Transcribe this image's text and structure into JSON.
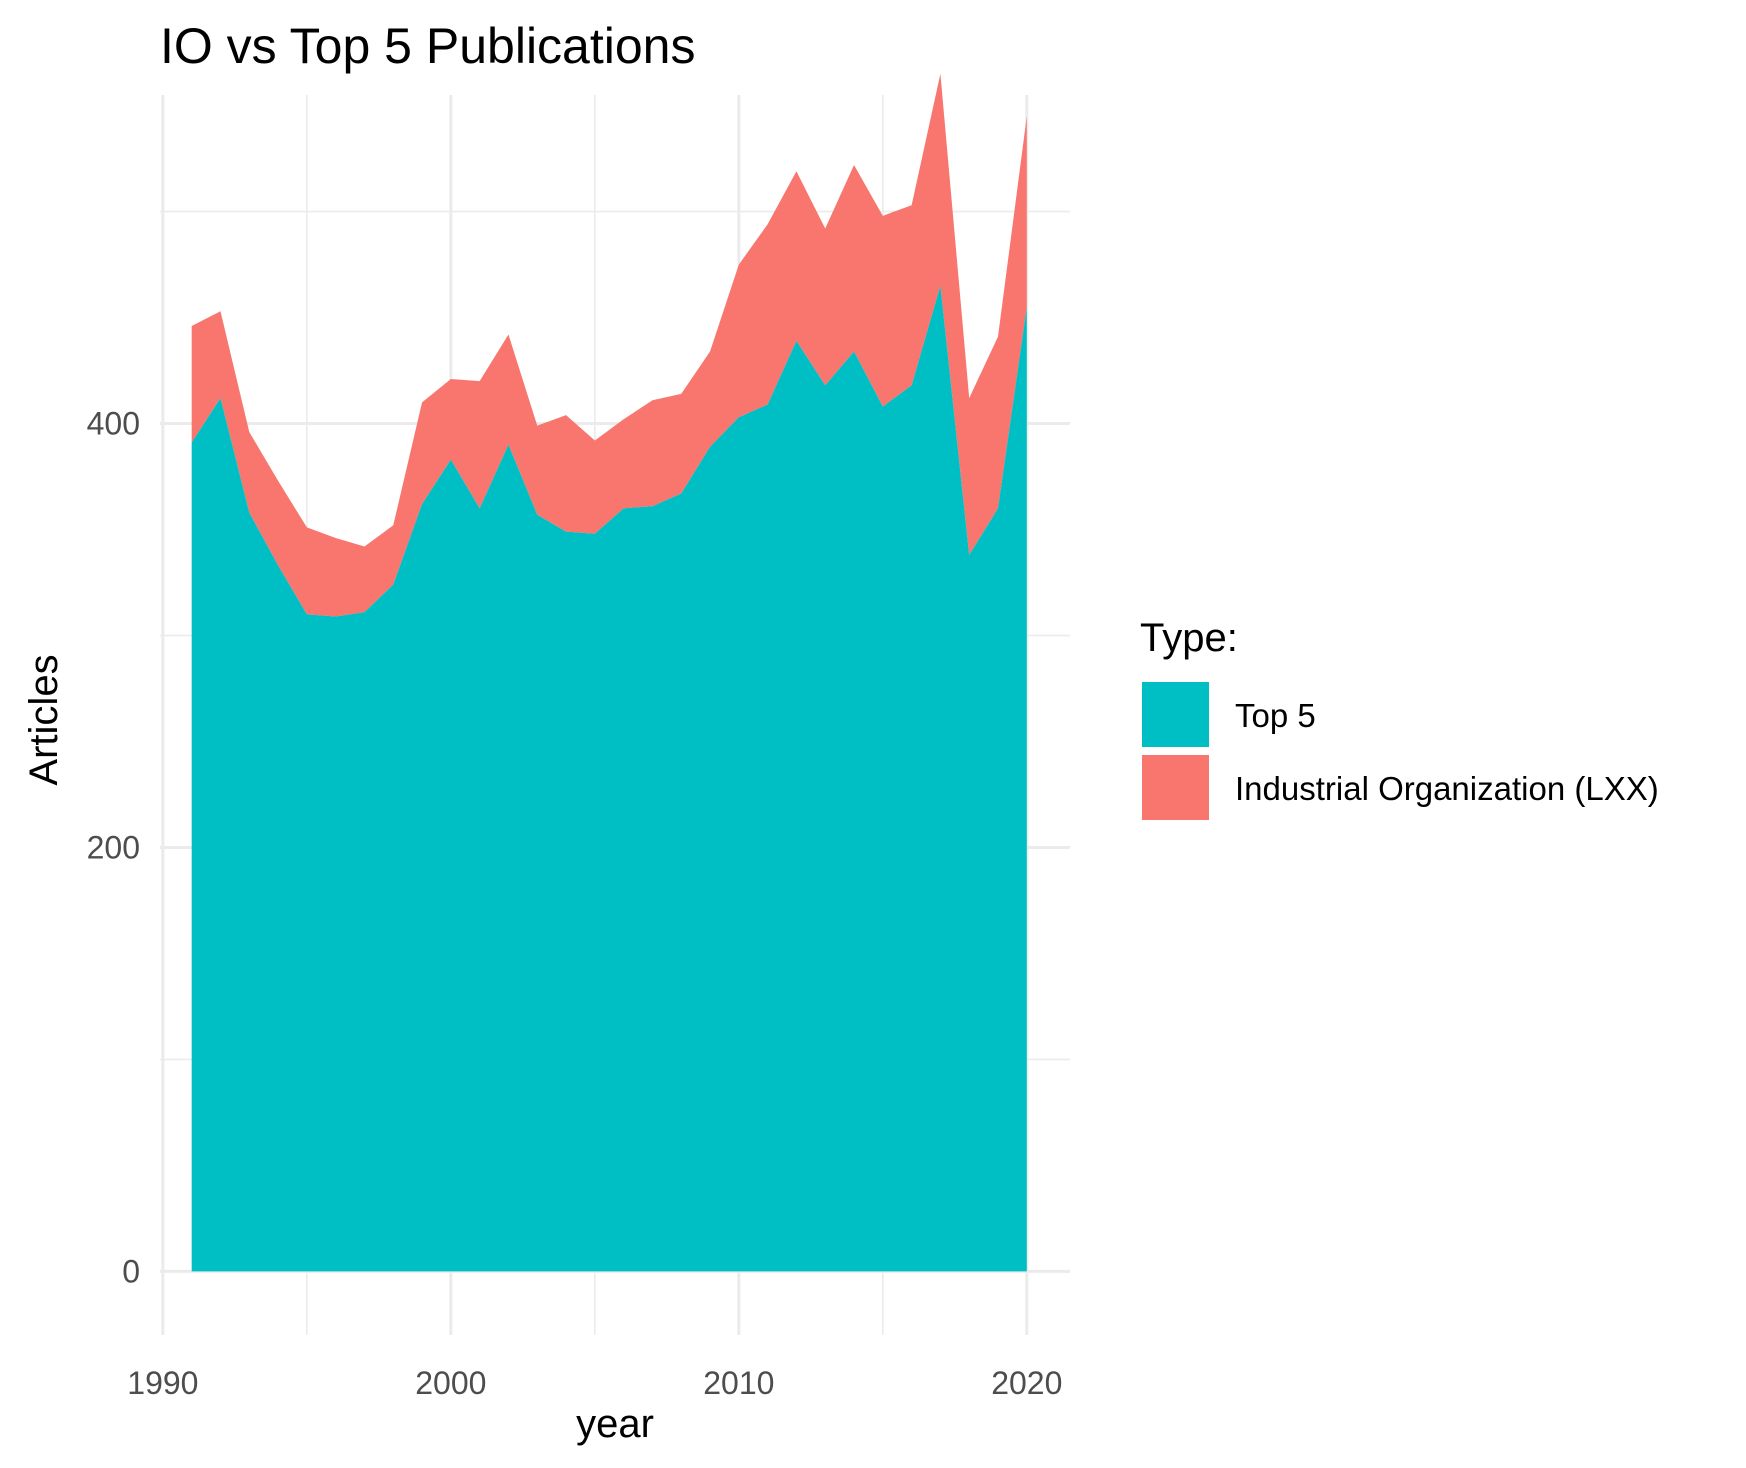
{
  "chart_data": {
    "type": "area",
    "stacked": true,
    "title": "IO vs Top 5 Publications",
    "xlabel": "year",
    "ylabel": "Articles",
    "xlim": [
      1989.9,
      2021.5
    ],
    "ylim": [
      -30,
      555
    ],
    "x_ticks": [
      1990,
      2000,
      2010,
      2020
    ],
    "x_tick_labels": [
      "1990",
      "2000",
      "2010",
      "2020"
    ],
    "y_ticks": [
      0,
      200,
      400
    ],
    "y_tick_labels": [
      "0",
      "200",
      "400"
    ],
    "grid": true,
    "legend": {
      "title": "Type:",
      "position": "right",
      "entries": [
        {
          "label": "Top 5",
          "color": "#00BFC4"
        },
        {
          "label": "Industrial Organization (LXX)",
          "color": "#F8766D"
        }
      ]
    },
    "x": [
      1991,
      1992,
      1993,
      1994,
      1995,
      1996,
      1997,
      1998,
      1999,
      2000,
      2001,
      2002,
      2003,
      2004,
      2005,
      2006,
      2007,
      2008,
      2009,
      2010,
      2011,
      2012,
      2013,
      2014,
      2015,
      2016,
      2017,
      2018,
      2019,
      2020
    ],
    "series": [
      {
        "name": "Top 5",
        "color": "#00BFC4",
        "values": [
          391,
          412,
          358,
          333,
          310,
          309,
          311,
          324,
          362,
          383,
          360,
          390,
          357,
          349,
          348,
          360,
          361,
          367,
          389,
          403,
          409,
          439,
          418,
          434,
          408,
          418,
          465,
          338,
          360,
          455
        ]
      },
      {
        "name": "Industrial Organization (LXX)",
        "color": "#F8766D",
        "values": [
          55,
          41,
          38,
          40,
          41,
          37,
          31,
          28,
          48,
          38,
          60,
          52,
          42,
          55,
          44,
          42,
          50,
          47,
          45,
          72,
          85,
          80,
          74,
          88,
          90,
          85,
          100,
          74,
          81,
          90
        ]
      }
    ]
  }
}
